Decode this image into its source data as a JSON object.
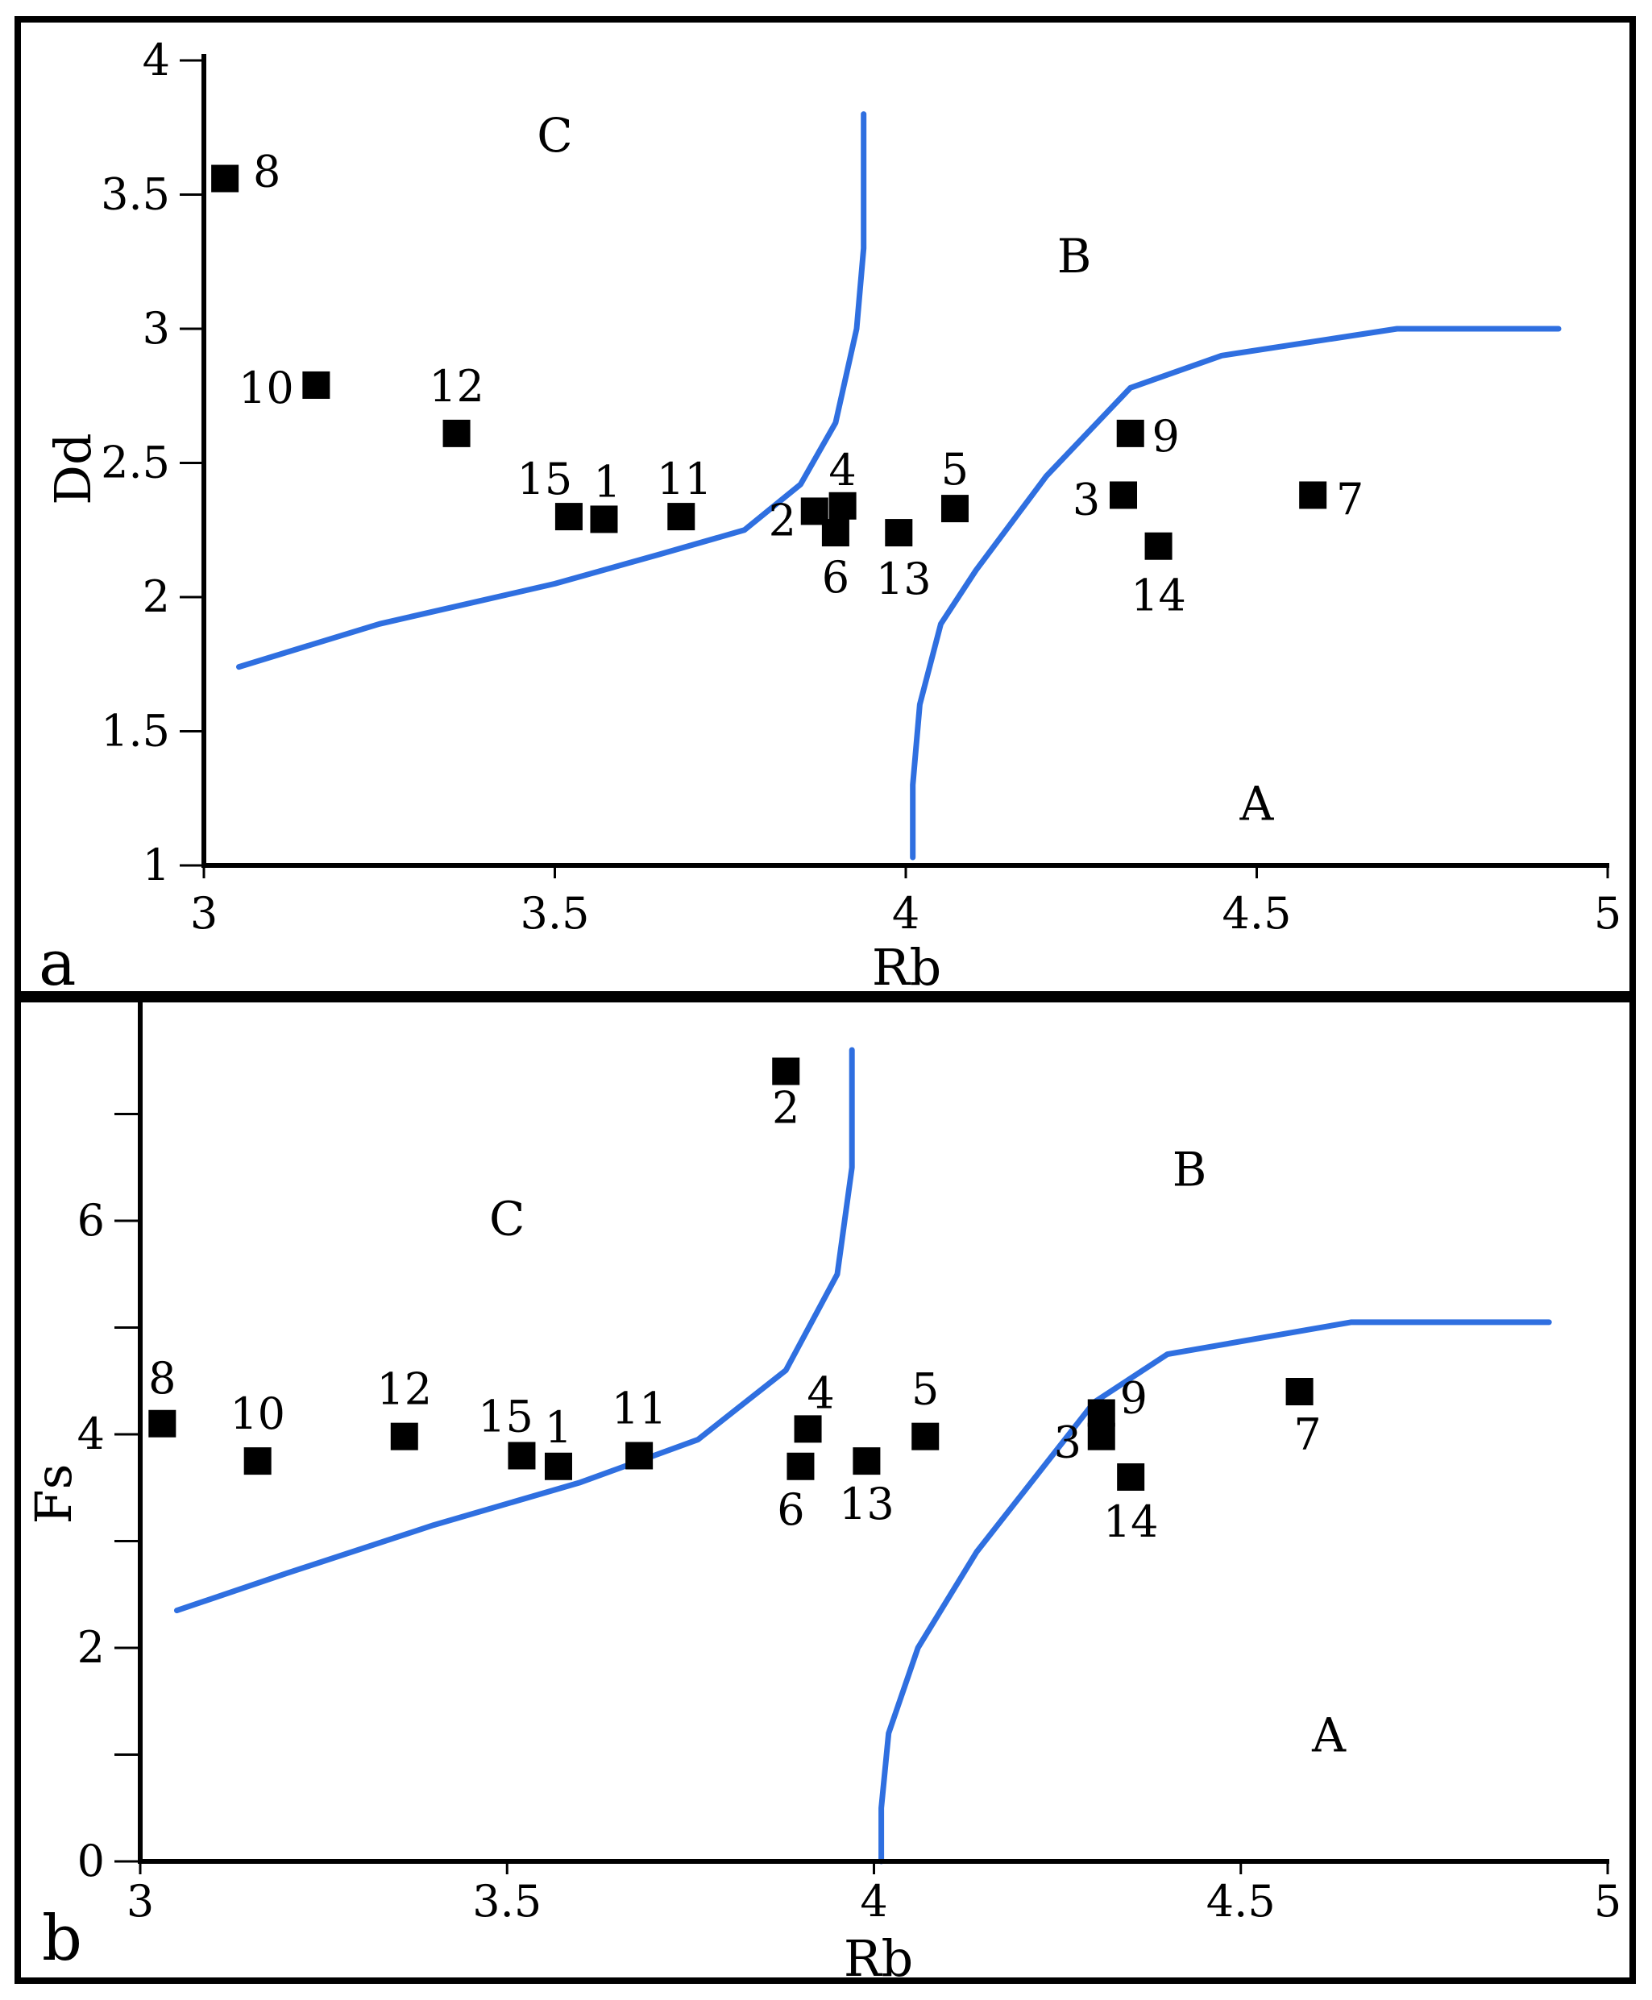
{
  "chart_data": [
    {
      "panel": "a",
      "type": "scatter",
      "xlabel": "Rb",
      "ylabel": "Dd",
      "xlim": [
        3,
        5
      ],
      "ylim": [
        1,
        4
      ],
      "xticks": [
        3,
        3.5,
        4,
        4.5,
        5
      ],
      "yticks": [
        1,
        1.5,
        2,
        2.5,
        3,
        3.5,
        4
      ],
      "xtick_labels": [
        "3",
        "3.5",
        "4",
        "4.5",
        "5"
      ],
      "ytick_labels": [
        "1",
        "1.5",
        "2",
        "2.5",
        "3",
        "3.5",
        "4"
      ],
      "points": [
        {
          "label": "8",
          "x": 3.03,
          "y": 3.56
        },
        {
          "label": "10",
          "x": 3.16,
          "y": 2.79
        },
        {
          "label": "12",
          "x": 3.36,
          "y": 2.61
        },
        {
          "label": "15",
          "x": 3.52,
          "y": 2.3
        },
        {
          "label": "1",
          "x": 3.57,
          "y": 2.29
        },
        {
          "label": "11",
          "x": 3.68,
          "y": 2.3
        },
        {
          "label": "2",
          "x": 3.87,
          "y": 2.32
        },
        {
          "label": "4",
          "x": 3.91,
          "y": 2.34
        },
        {
          "label": "6",
          "x": 3.9,
          "y": 2.24
        },
        {
          "label": "13",
          "x": 3.99,
          "y": 2.24
        },
        {
          "label": "5",
          "x": 4.07,
          "y": 2.33
        },
        {
          "label": "9",
          "x": 4.32,
          "y": 2.61
        },
        {
          "label": "3",
          "x": 4.31,
          "y": 2.38
        },
        {
          "label": "14",
          "x": 4.36,
          "y": 2.19
        },
        {
          "label": "7",
          "x": 4.58,
          "y": 2.38
        }
      ],
      "regions": [
        {
          "label": "C",
          "x": 3.5,
          "y": 3.72
        },
        {
          "label": "B",
          "x": 4.24,
          "y": 3.27
        },
        {
          "label": "A",
          "x": 4.5,
          "y": 1.23
        }
      ],
      "boundaries": [
        [
          [
            3.05,
            1.74
          ],
          [
            3.25,
            1.9
          ],
          [
            3.5,
            2.05
          ],
          [
            3.65,
            2.16
          ],
          [
            3.77,
            2.25
          ],
          [
            3.85,
            2.42
          ],
          [
            3.9,
            2.65
          ],
          [
            3.93,
            3.0
          ],
          [
            3.94,
            3.3
          ],
          [
            3.94,
            3.8
          ]
        ],
        [
          [
            4.01,
            1.03
          ],
          [
            4.01,
            1.3
          ],
          [
            4.02,
            1.6
          ],
          [
            4.05,
            1.9
          ],
          [
            4.1,
            2.1
          ],
          [
            4.2,
            2.45
          ],
          [
            4.32,
            2.78
          ],
          [
            4.45,
            2.9
          ],
          [
            4.7,
            3.0
          ],
          [
            4.93,
            3.0
          ]
        ]
      ],
      "line_color": "#2f6fe0",
      "marker_color": "#000000"
    },
    {
      "panel": "b",
      "type": "scatter",
      "xlabel": "Rb",
      "ylabel": "Fs",
      "xlim": [
        3,
        5
      ],
      "ylim": [
        0,
        8
      ],
      "xticks": [
        3,
        3.5,
        4,
        4.5,
        5
      ],
      "yticks": [
        0,
        1,
        2,
        3,
        4,
        5,
        6,
        7
      ],
      "xtick_labels": [
        "3",
        "3.5",
        "4",
        "4.5",
        "5"
      ],
      "ytick_labels": [
        "0",
        "2",
        "4",
        "6"
      ],
      "points": [
        {
          "label": "2",
          "x": 3.88,
          "y": 7.4
        },
        {
          "label": "8",
          "x": 3.03,
          "y": 4.1
        },
        {
          "label": "10",
          "x": 3.16,
          "y": 3.75
        },
        {
          "label": "12",
          "x": 3.36,
          "y": 3.98
        },
        {
          "label": "15",
          "x": 3.52,
          "y": 3.8
        },
        {
          "label": "1",
          "x": 3.57,
          "y": 3.7
        },
        {
          "label": "11",
          "x": 3.68,
          "y": 3.8
        },
        {
          "label": "4",
          "x": 3.91,
          "y": 4.05
        },
        {
          "label": "6",
          "x": 3.9,
          "y": 3.7
        },
        {
          "label": "13",
          "x": 3.99,
          "y": 3.75
        },
        {
          "label": "5",
          "x": 4.07,
          "y": 3.98
        },
        {
          "label": "9",
          "x": 4.31,
          "y": 4.2
        },
        {
          "label": "3",
          "x": 4.31,
          "y": 3.98
        },
        {
          "label": "14",
          "x": 4.35,
          "y": 3.6
        },
        {
          "label": "7",
          "x": 4.58,
          "y": 4.4
        }
      ],
      "regions": [
        {
          "label": "C",
          "x": 3.5,
          "y": 6.02
        },
        {
          "label": "B",
          "x": 4.43,
          "y": 6.48
        },
        {
          "label": "A",
          "x": 4.62,
          "y": 1.18
        }
      ],
      "boundaries": [
        [
          [
            3.05,
            2.35
          ],
          [
            3.2,
            2.7
          ],
          [
            3.4,
            3.15
          ],
          [
            3.6,
            3.55
          ],
          [
            3.76,
            3.95
          ],
          [
            3.88,
            4.6
          ],
          [
            3.95,
            5.5
          ],
          [
            3.97,
            6.5
          ],
          [
            3.97,
            7.6
          ]
        ],
        [
          [
            4.01,
            0.0
          ],
          [
            4.01,
            0.5
          ],
          [
            4.02,
            1.2
          ],
          [
            4.06,
            2.0
          ],
          [
            4.14,
            2.9
          ],
          [
            4.3,
            4.3
          ],
          [
            4.4,
            4.75
          ],
          [
            4.65,
            5.05
          ],
          [
            4.92,
            5.05
          ]
        ]
      ],
      "line_color": "#2f6fe0",
      "marker_color": "#000000"
    }
  ]
}
